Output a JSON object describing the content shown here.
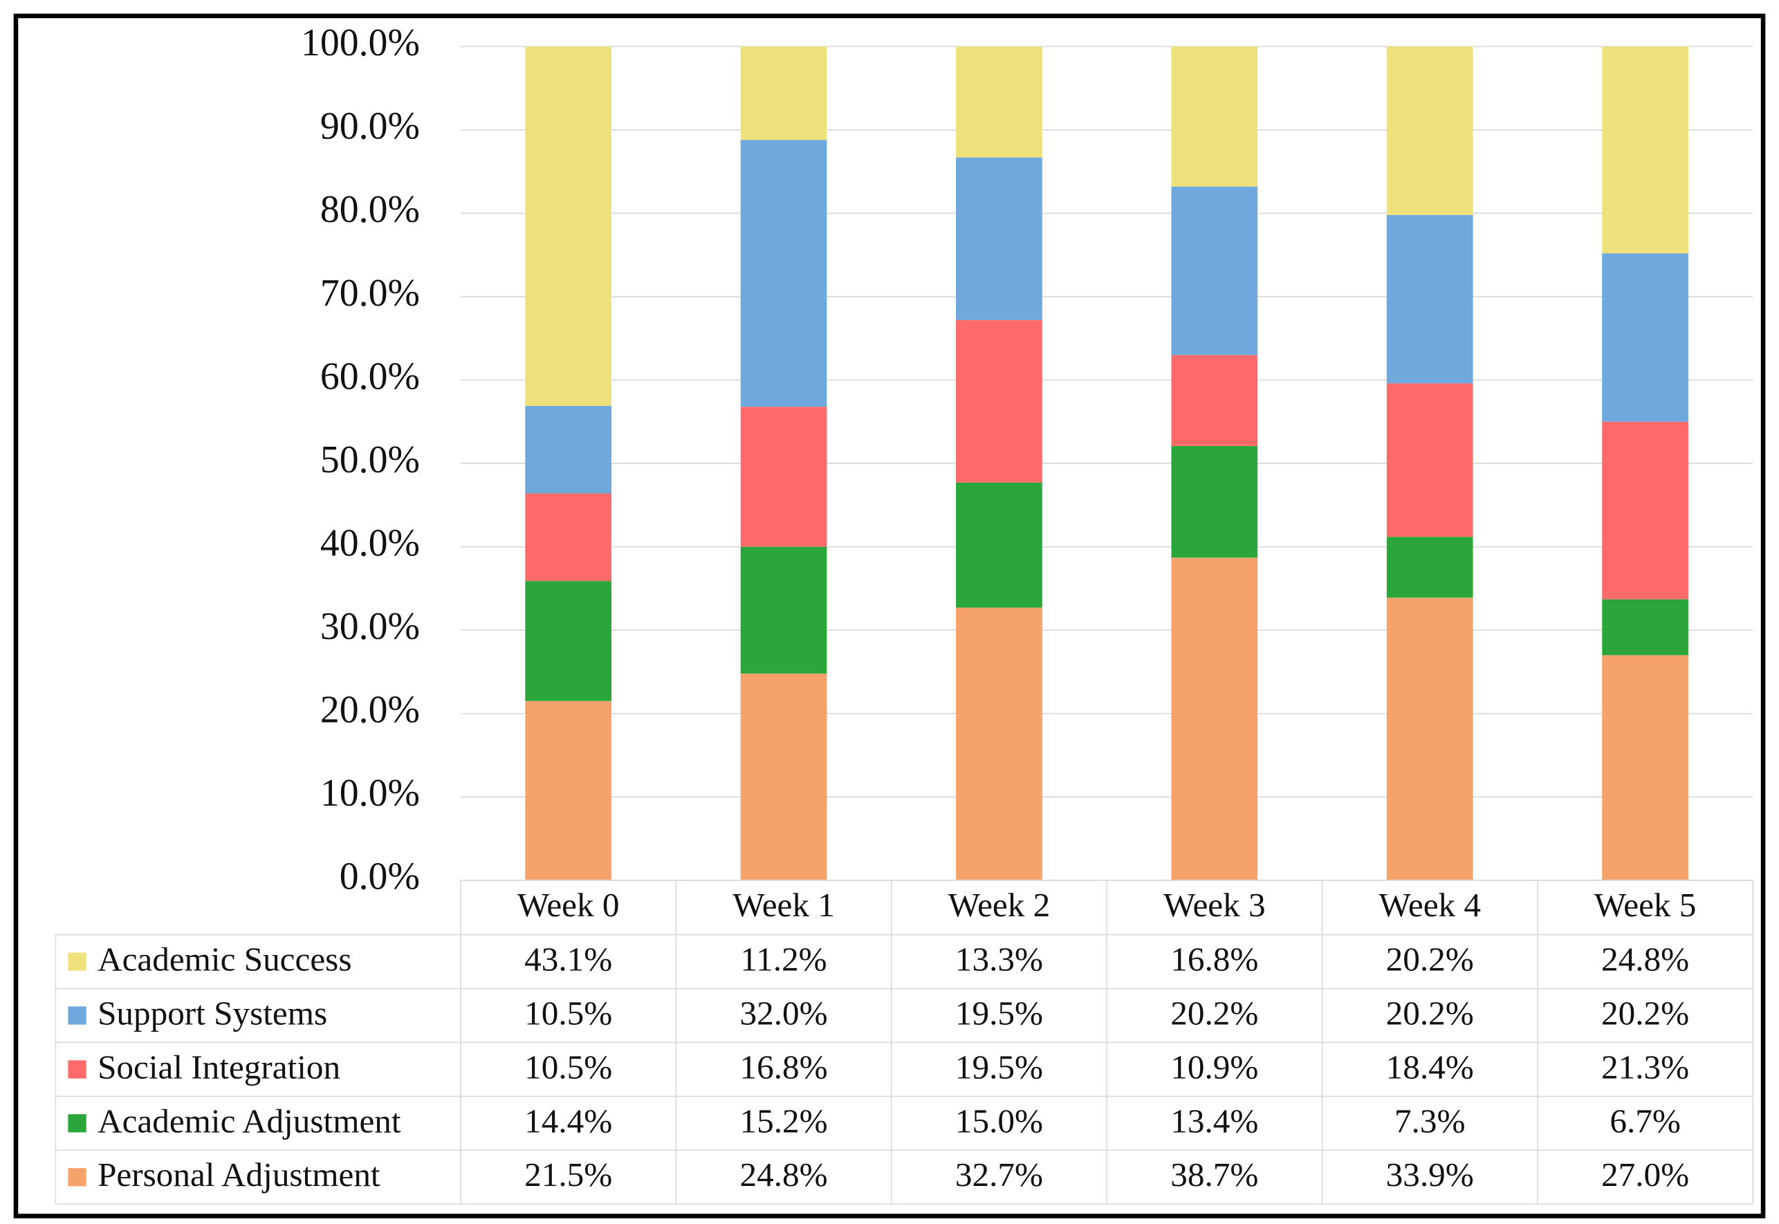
{
  "chart_data": {
    "type": "stacked_bar",
    "categories": [
      "Week 0",
      "Week 1",
      "Week 2",
      "Week 3",
      "Week 4",
      "Week 5"
    ],
    "series": [
      {
        "name": "Academic Success",
        "color": "#EEE07A",
        "values": [
          43.1,
          11.2,
          13.3,
          16.8,
          20.2,
          24.8
        ],
        "value_labels": [
          "43.1%",
          "11.2%",
          "13.3%",
          "16.8%",
          "20.2%",
          "24.8%"
        ]
      },
      {
        "name": "Support Systems",
        "color": "#6FA8DC",
        "values": [
          10.5,
          32.0,
          19.5,
          20.2,
          20.2,
          20.2
        ],
        "value_labels": [
          "10.5%",
          "32.0%",
          "19.5%",
          "20.2%",
          "20.2%",
          "20.2%"
        ]
      },
      {
        "name": "Social Integration",
        "color": "#FF6B6B",
        "values": [
          10.5,
          16.8,
          19.5,
          10.9,
          18.4,
          21.3
        ],
        "value_labels": [
          "10.5%",
          "16.8%",
          "19.5%",
          "10.9%",
          "18.4%",
          "21.3%"
        ]
      },
      {
        "name": "Academic Adjustment",
        "color": "#2AA63A",
        "values": [
          14.4,
          15.2,
          15.0,
          13.4,
          7.3,
          6.7
        ],
        "value_labels": [
          "14.4%",
          "15.2%",
          "15.0%",
          "13.4%",
          "7.3%",
          "6.7%"
        ]
      },
      {
        "name": "Personal Adjustment",
        "color": "#F6A26B",
        "values": [
          21.5,
          24.8,
          32.7,
          38.7,
          33.9,
          27.0
        ],
        "value_labels": [
          "21.5%",
          "24.8%",
          "32.7%",
          "38.7%",
          "33.9%",
          "27.0%"
        ]
      }
    ],
    "ylim": [
      0,
      100
    ],
    "yticks": [
      {
        "value": 0,
        "label": "0.0%"
      },
      {
        "value": 10,
        "label": "10.0%"
      },
      {
        "value": 20,
        "label": "20.0%"
      },
      {
        "value": 30,
        "label": "30.0%"
      },
      {
        "value": 40,
        "label": "40.0%"
      },
      {
        "value": 50,
        "label": "50.0%"
      },
      {
        "value": 60,
        "label": "60.0%"
      },
      {
        "value": 70,
        "label": "70.0%"
      },
      {
        "value": 80,
        "label": "80.0%"
      },
      {
        "value": 90,
        "label": "90.0%"
      },
      {
        "value": 100,
        "label": "100.0%"
      }
    ],
    "grid": true
  }
}
